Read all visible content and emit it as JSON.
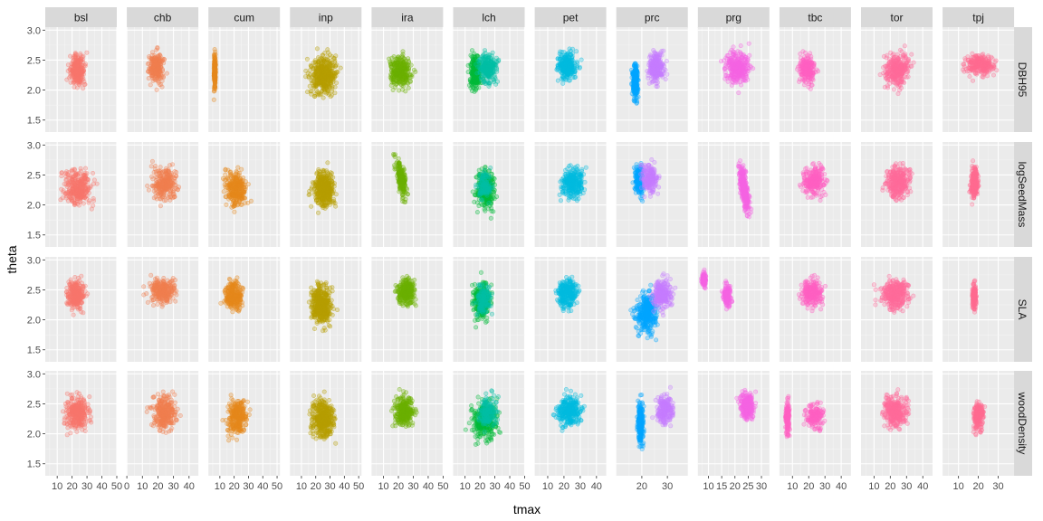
{
  "chart_data": {
    "type": "scatter",
    "xlabel": "tmax",
    "ylabel": "theta",
    "ylim": [
      1.3,
      3.05
    ],
    "y_ticks": [
      "1.5",
      "2.0",
      "2.5",
      "3.0"
    ],
    "grid": true,
    "legend": "none",
    "facets": {
      "columns": [
        "bsl",
        "chb",
        "cum",
        "inp",
        "ira",
        "lch",
        "pet",
        "prc",
        "prg",
        "tbc",
        "tor",
        "tpj"
      ],
      "rows": [
        "DBH95",
        "logSeedMass",
        "SLA",
        "woodDensity"
      ]
    },
    "column_x_axes": [
      {
        "xlim": [
          2,
          50
        ],
        "tick_values": [
          10,
          20,
          30,
          40,
          50
        ],
        "tick_labels": [
          "10",
          "20",
          "30",
          "40",
          "50"
        ]
      },
      {
        "xlim": [
          0,
          46
        ],
        "tick_values": [
          0,
          10,
          20,
          30,
          40
        ],
        "tick_labels": [
          "0",
          "10",
          "20",
          "30",
          "40"
        ]
      },
      {
        "xlim": [
          2,
          52
        ],
        "tick_values": [
          10,
          20,
          30,
          40,
          50
        ],
        "tick_labels": [
          "10",
          "20",
          "30",
          "40",
          "50"
        ]
      },
      {
        "xlim": [
          2,
          52
        ],
        "tick_values": [
          10,
          20,
          30,
          40,
          50
        ],
        "tick_labels": [
          "10",
          "20",
          "30",
          "40",
          "50"
        ]
      },
      {
        "xlim": [
          2,
          50
        ],
        "tick_values": [
          10,
          20,
          30,
          40,
          50
        ],
        "tick_labels": [
          "10",
          "20",
          "30",
          "40",
          "50"
        ]
      },
      {
        "xlim": [
          2,
          50
        ],
        "tick_values": [
          10,
          20,
          30,
          40,
          50
        ],
        "tick_labels": [
          "10",
          "20",
          "30",
          "40",
          "50"
        ]
      },
      {
        "xlim": [
          2,
          46
        ],
        "tick_values": [
          10,
          20,
          30,
          40
        ],
        "tick_labels": [
          "10",
          "20",
          "30",
          "40"
        ]
      },
      {
        "xlim": [
          10,
          38
        ],
        "tick_values": [
          20,
          30
        ],
        "tick_labels": [
          "20",
          "30"
        ]
      },
      {
        "xlim": [
          6,
          33
        ],
        "tick_values": [
          10,
          15,
          20,
          25,
          30
        ],
        "tick_labels": [
          "10",
          "15",
          "20",
          "25",
          "30"
        ]
      },
      {
        "xlim": [
          2,
          46
        ],
        "tick_values": [
          10,
          20,
          30,
          40
        ],
        "tick_labels": [
          "10",
          "20",
          "30",
          "40"
        ]
      },
      {
        "xlim": [
          2,
          46
        ],
        "tick_values": [
          10,
          20,
          30,
          40
        ],
        "tick_labels": [
          "10",
          "20",
          "30",
          "40"
        ]
      },
      {
        "xlim": [
          2,
          38
        ],
        "tick_values": [
          10,
          20,
          30
        ],
        "tick_labels": [
          "10",
          "20",
          "30"
        ]
      }
    ],
    "series": [
      {
        "name": "bsl",
        "color": "#F8766D"
      },
      {
        "name": "chb",
        "color": "#F07F50"
      },
      {
        "name": "cum",
        "color": "#E6881C"
      },
      {
        "name": "inp",
        "color": "#B79F00"
      },
      {
        "name": "ira",
        "color": "#6BB100"
      },
      {
        "name": "lch",
        "color": "#00BA38"
      },
      {
        "name": "lch",
        "color": "#00BFA5"
      },
      {
        "name": "pet",
        "color": "#00BCE0"
      },
      {
        "name": "prc",
        "color": "#00A5FF"
      },
      {
        "name": "prc",
        "color": "#C77CFF"
      },
      {
        "name": "prg",
        "color": "#F564E3"
      },
      {
        "name": "tbc",
        "color": "#FF61C3"
      },
      {
        "name": "tor",
        "color": "#FF6C9A"
      },
      {
        "name": "tpj",
        "color": "#FF6C91"
      }
    ],
    "clusters": [
      {
        "col": 0,
        "row": 0,
        "color": "#F8766D",
        "x": [
          12,
          36
        ],
        "y": [
          1.75,
          2.9
        ],
        "n": 280
      },
      {
        "col": 1,
        "row": 0,
        "color": "#F07F50",
        "x": [
          8,
          30
        ],
        "y": [
          1.8,
          2.95
        ],
        "n": 220
      },
      {
        "col": 2,
        "row": 0,
        "color": "#E6881C",
        "x": [
          5,
          8
        ],
        "y": [
          1.65,
          2.95
        ],
        "n": 180
      },
      {
        "col": 3,
        "row": 0,
        "color": "#B79F00",
        "x": [
          5,
          46
        ],
        "y": [
          1.55,
          2.95
        ],
        "n": 420
      },
      {
        "col": 4,
        "row": 0,
        "color": "#6BB100",
        "x": [
          5,
          38
        ],
        "y": [
          1.7,
          2.9
        ],
        "n": 300
      },
      {
        "col": 5,
        "row": 0,
        "color": "#00BA38",
        "x": [
          8,
          26
        ],
        "y": [
          1.65,
          2.95
        ],
        "n": 230
      },
      {
        "col": 5,
        "row": 0,
        "color": "#00BFA5",
        "x": [
          12,
          38
        ],
        "y": [
          1.8,
          2.95
        ],
        "n": 230
      },
      {
        "col": 6,
        "row": 0,
        "color": "#00BCE0",
        "x": [
          8,
          36
        ],
        "y": [
          1.85,
          2.95
        ],
        "n": 260
      },
      {
        "col": 7,
        "row": 0,
        "color": "#00A5FF",
        "x": [
          15,
          20
        ],
        "y": [
          1.45,
          2.85
        ],
        "n": 240
      },
      {
        "col": 7,
        "row": 0,
        "color": "#C77CFF",
        "x": [
          18,
          33
        ],
        "y": [
          1.8,
          2.95
        ],
        "n": 240
      },
      {
        "col": 8,
        "row": 0,
        "color": "#F564E3",
        "x": [
          10,
          32
        ],
        "y": [
          1.8,
          2.95
        ],
        "n": 320
      },
      {
        "col": 9,
        "row": 0,
        "color": "#FF61C3",
        "x": [
          8,
          30
        ],
        "y": [
          1.8,
          2.9
        ],
        "n": 220
      },
      {
        "col": 10,
        "row": 0,
        "color": "#FF6C9A",
        "x": [
          8,
          40
        ],
        "y": [
          1.75,
          2.95
        ],
        "n": 320
      },
      {
        "col": 11,
        "row": 0,
        "color": "#FF6C91",
        "x": [
          4,
          37
        ],
        "y": [
          2.05,
          2.8
        ],
        "n": 260
      },
      {
        "col": 0,
        "row": 1,
        "color": "#F8766D",
        "x": [
          3,
          45
        ],
        "y": [
          1.6,
          2.95
        ],
        "n": 320
      },
      {
        "col": 1,
        "row": 1,
        "color": "#F07F50",
        "x": [
          6,
          42
        ],
        "y": [
          1.75,
          2.95
        ],
        "n": 260
      },
      {
        "col": 2,
        "row": 1,
        "color": "#E6881C",
        "x": [
          4,
          38
        ],
        "y": [
          1.55,
          2.95
        ],
        "n": 280
      },
      {
        "col": 3,
        "row": 1,
        "color": "#B79F00",
        "x": [
          10,
          42
        ],
        "y": [
          1.6,
          2.95
        ],
        "n": 420
      },
      {
        "col": 4,
        "row": 1,
        "color": "#6BB100",
        "x": [
          14,
          30
        ],
        "y": [
          1.9,
          2.95
        ],
        "n": 200,
        "slope": -0.06
      },
      {
        "col": 5,
        "row": 1,
        "color": "#00BA38",
        "x": [
          10,
          38
        ],
        "y": [
          1.55,
          2.95
        ],
        "n": 300
      },
      {
        "col": 5,
        "row": 1,
        "color": "#00BFA5",
        "x": [
          12,
          34
        ],
        "y": [
          1.8,
          2.85
        ],
        "n": 120
      },
      {
        "col": 6,
        "row": 1,
        "color": "#00BCE0",
        "x": [
          10,
          40
        ],
        "y": [
          1.8,
          2.95
        ],
        "n": 280
      },
      {
        "col": 7,
        "row": 1,
        "color": "#00A5FF",
        "x": [
          15,
          23
        ],
        "y": [
          1.9,
          2.95
        ],
        "n": 200
      },
      {
        "col": 7,
        "row": 1,
        "color": "#C77CFF",
        "x": [
          16,
          30
        ],
        "y": [
          1.95,
          2.95
        ],
        "n": 200
      },
      {
        "col": 8,
        "row": 1,
        "color": "#F564E3",
        "x": [
          19,
          28
        ],
        "y": [
          1.6,
          2.95
        ],
        "n": 300,
        "slope": -0.14
      },
      {
        "col": 9,
        "row": 1,
        "color": "#FF61C3",
        "x": [
          8,
          38
        ],
        "y": [
          1.85,
          2.95
        ],
        "n": 260
      },
      {
        "col": 10,
        "row": 1,
        "color": "#FF6C9A",
        "x": [
          8,
          42
        ],
        "y": [
          1.8,
          2.95
        ],
        "n": 320
      },
      {
        "col": 11,
        "row": 1,
        "color": "#FF6C91",
        "x": [
          14,
          22
        ],
        "y": [
          1.8,
          2.95
        ],
        "n": 220
      },
      {
        "col": 0,
        "row": 2,
        "color": "#F8766D",
        "x": [
          8,
          36
        ],
        "y": [
          1.9,
          2.95
        ],
        "n": 260
      },
      {
        "col": 1,
        "row": 2,
        "color": "#F07F50",
        "x": [
          4,
          42
        ],
        "y": [
          2.0,
          2.95
        ],
        "n": 260
      },
      {
        "col": 2,
        "row": 2,
        "color": "#E6881C",
        "x": [
          5,
          34
        ],
        "y": [
          1.85,
          2.95
        ],
        "n": 260
      },
      {
        "col": 3,
        "row": 2,
        "color": "#B79F00",
        "x": [
          8,
          40
        ],
        "y": [
          1.55,
          2.95
        ],
        "n": 420
      },
      {
        "col": 4,
        "row": 2,
        "color": "#6BB100",
        "x": [
          12,
          38
        ],
        "y": [
          2.0,
          2.95
        ],
        "n": 260
      },
      {
        "col": 5,
        "row": 2,
        "color": "#00BA38",
        "x": [
          8,
          34
        ],
        "y": [
          1.65,
          2.95
        ],
        "n": 280
      },
      {
        "col": 5,
        "row": 2,
        "color": "#00BFA5",
        "x": [
          10,
          34
        ],
        "y": [
          1.8,
          2.9
        ],
        "n": 140
      },
      {
        "col": 6,
        "row": 2,
        "color": "#00BCE0",
        "x": [
          8,
          36
        ],
        "y": [
          1.9,
          2.95
        ],
        "n": 260
      },
      {
        "col": 7,
        "row": 2,
        "color": "#00A5FF",
        "x": [
          12,
          32
        ],
        "y": [
          1.35,
          2.9
        ],
        "n": 320
      },
      {
        "col": 7,
        "row": 2,
        "color": "#C77CFF",
        "x": [
          20,
          36
        ],
        "y": [
          1.9,
          2.95
        ],
        "n": 260
      },
      {
        "col": 8,
        "row": 2,
        "color": "#F564E3",
        "x": [
          6.5,
          10
        ],
        "y": [
          2.4,
          2.95
        ],
        "n": 110
      },
      {
        "col": 8,
        "row": 2,
        "color": "#F564E3",
        "x": [
          14,
          20
        ],
        "y": [
          1.95,
          2.85
        ],
        "n": 150
      },
      {
        "col": 9,
        "row": 2,
        "color": "#FF61C3",
        "x": [
          8,
          36
        ],
        "y": [
          1.95,
          2.95
        ],
        "n": 240
      },
      {
        "col": 10,
        "row": 2,
        "color": "#FF6C9A",
        "x": [
          4,
          42
        ],
        "y": [
          1.9,
          2.95
        ],
        "n": 320
      },
      {
        "col": 11,
        "row": 2,
        "color": "#FF6C91",
        "x": [
          16,
          20
        ],
        "y": [
          1.95,
          2.85
        ],
        "n": 150
      },
      {
        "col": 0,
        "row": 3,
        "color": "#F8766D",
        "x": [
          6,
          40
        ],
        "y": [
          1.75,
          2.95
        ],
        "n": 300
      },
      {
        "col": 1,
        "row": 3,
        "color": "#F07F50",
        "x": [
          6,
          42
        ],
        "y": [
          1.75,
          2.95
        ],
        "n": 300
      },
      {
        "col": 2,
        "row": 3,
        "color": "#E6881C",
        "x": [
          6,
          38
        ],
        "y": [
          1.6,
          2.95
        ],
        "n": 280
      },
      {
        "col": 3,
        "row": 3,
        "color": "#B79F00",
        "x": [
          8,
          42
        ],
        "y": [
          1.55,
          2.95
        ],
        "n": 420
      },
      {
        "col": 4,
        "row": 3,
        "color": "#6BB100",
        "x": [
          10,
          38
        ],
        "y": [
          1.8,
          2.95
        ],
        "n": 280
      },
      {
        "col": 5,
        "row": 3,
        "color": "#00BA38",
        "x": [
          5,
          42
        ],
        "y": [
          1.5,
          2.95
        ],
        "n": 320
      },
      {
        "col": 5,
        "row": 3,
        "color": "#00BFA5",
        "x": [
          12,
          38
        ],
        "y": [
          1.8,
          2.95
        ],
        "n": 160
      },
      {
        "col": 6,
        "row": 3,
        "color": "#00BCE0",
        "x": [
          6,
          40
        ],
        "y": [
          1.8,
          2.95
        ],
        "n": 280
      },
      {
        "col": 7,
        "row": 3,
        "color": "#00A5FF",
        "x": [
          17,
          22
        ],
        "y": [
          1.4,
          2.95
        ],
        "n": 240
      },
      {
        "col": 7,
        "row": 3,
        "color": "#C77CFF",
        "x": [
          22,
          36
        ],
        "y": [
          1.85,
          2.95
        ],
        "n": 220
      },
      {
        "col": 8,
        "row": 3,
        "color": "#F564E3",
        "x": [
          19,
          30
        ],
        "y": [
          2.0,
          2.95
        ],
        "n": 300
      },
      {
        "col": 9,
        "row": 3,
        "color": "#FF61C3",
        "x": [
          4,
          10
        ],
        "y": [
          1.6,
          2.95
        ],
        "n": 150
      },
      {
        "col": 9,
        "row": 3,
        "color": "#FF61C3",
        "x": [
          12,
          36
        ],
        "y": [
          1.8,
          2.8
        ],
        "n": 160
      },
      {
        "col": 10,
        "row": 3,
        "color": "#FF6C9A",
        "x": [
          6,
          40
        ],
        "y": [
          1.8,
          2.95
        ],
        "n": 320
      },
      {
        "col": 11,
        "row": 3,
        "color": "#FF6C91",
        "x": [
          14,
          26
        ],
        "y": [
          1.75,
          2.85
        ],
        "n": 220
      }
    ]
  }
}
